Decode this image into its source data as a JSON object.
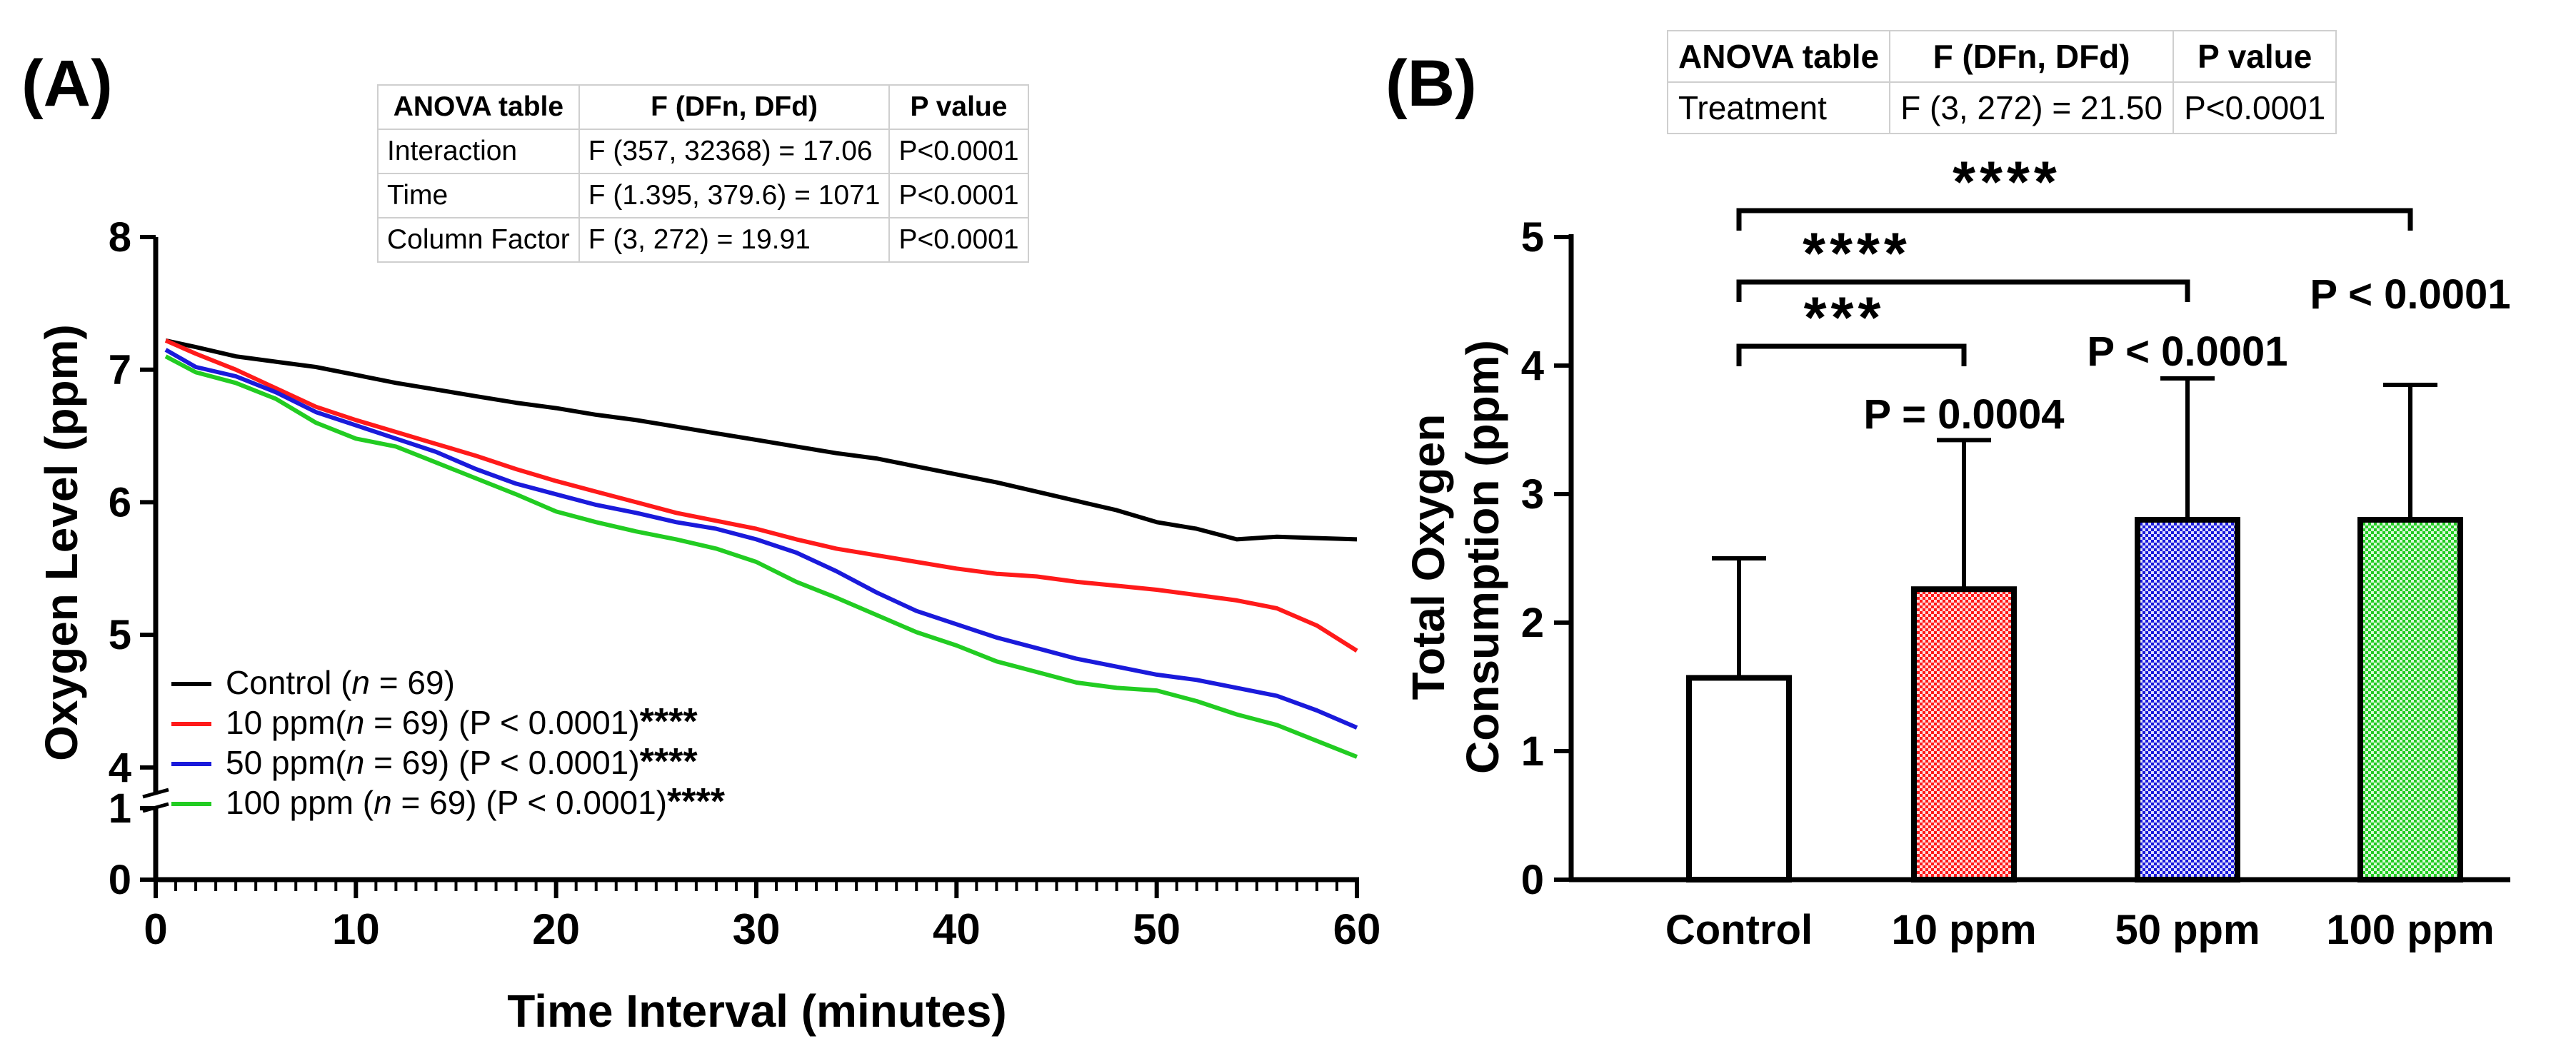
{
  "panels": {
    "a": {
      "label": "(A)"
    },
    "b": {
      "label": "(B)"
    }
  },
  "anova_a": {
    "headers": [
      "ANOVA table",
      "F (DFn, DFd)",
      "P value"
    ],
    "rows": [
      [
        "Interaction",
        "F (357, 32368) = 17.06",
        "P<0.0001"
      ],
      [
        "Time",
        "F (1.395, 379.6) = 1071",
        "P<0.0001"
      ],
      [
        "Column Factor",
        "F (3, 272) = 19.91",
        "P<0.0001"
      ]
    ]
  },
  "anova_b": {
    "headers": [
      "ANOVA table",
      "F (DFn, DFd)",
      "P value"
    ],
    "rows": [
      [
        "Treatment",
        "F (3, 272) = 21.50",
        "P<0.0001"
      ]
    ]
  },
  "colors": {
    "control": "#000000",
    "ppm10": "#ff1a1a",
    "ppm50": "#1a1adb",
    "ppm100": "#22cc22",
    "axis": "#000000"
  },
  "chart_data": [
    {
      "id": "line",
      "type": "line",
      "xlabel": "Time Interval (minutes)",
      "ylabel": "Oxygen Level (ppm)",
      "xlim": [
        0,
        60
      ],
      "xticks": [
        "0",
        "10",
        "20",
        "30",
        "40",
        "50",
        "60"
      ],
      "ylim_upper": [
        3.8,
        8
      ],
      "ylim_lower": [
        0,
        1
      ],
      "yticks_upper": [
        "4",
        "5",
        "6",
        "7",
        "8"
      ],
      "yticks_lower": [
        "0",
        "1"
      ],
      "legend_position": "bottom-left",
      "series": [
        {
          "key": "control",
          "name": "Control (n = 69)",
          "legend_pre": "Control (",
          "legend_n": "n",
          "legend_post": " = 69)",
          "legend_sig": "",
          "x": [
            0.5,
            2,
            4,
            6,
            8,
            10,
            12,
            14,
            16,
            18,
            20,
            22,
            24,
            26,
            28,
            30,
            32,
            34,
            36,
            38,
            40,
            42,
            44,
            46,
            48,
            50,
            52,
            54,
            56,
            58,
            60
          ],
          "y": [
            7.22,
            7.17,
            7.1,
            7.06,
            7.02,
            6.96,
            6.9,
            6.85,
            6.8,
            6.75,
            6.71,
            6.66,
            6.62,
            6.57,
            6.52,
            6.47,
            6.42,
            6.37,
            6.33,
            6.27,
            6.21,
            6.15,
            6.08,
            6.01,
            5.94,
            5.85,
            5.8,
            5.72,
            5.74,
            5.73,
            5.72
          ]
        },
        {
          "key": "ppm10",
          "name": "10 ppm(n = 69) (P < 0.0001)****",
          "legend_pre": "10 ppm(",
          "legend_n": "n",
          "legend_post": " = 69) (P < 0.0001)",
          "legend_sig": "****",
          "x": [
            0.5,
            2,
            4,
            6,
            8,
            10,
            12,
            14,
            16,
            18,
            20,
            22,
            24,
            26,
            28,
            30,
            32,
            34,
            36,
            38,
            40,
            42,
            44,
            46,
            48,
            50,
            52,
            54,
            56,
            58,
            60
          ],
          "y": [
            7.22,
            7.12,
            7.0,
            6.86,
            6.72,
            6.62,
            6.53,
            6.44,
            6.35,
            6.25,
            6.16,
            6.08,
            6.0,
            5.92,
            5.86,
            5.8,
            5.72,
            5.65,
            5.6,
            5.55,
            5.5,
            5.46,
            5.44,
            5.4,
            5.37,
            5.34,
            5.3,
            5.26,
            5.2,
            5.07,
            4.88
          ]
        },
        {
          "key": "ppm50",
          "name": "50 ppm(n = 69) (P < 0.0001)****",
          "legend_pre": "50 ppm(",
          "legend_n": "n",
          "legend_post": " = 69) (P < 0.0001)",
          "legend_sig": "****",
          "x": [
            0.5,
            2,
            4,
            6,
            8,
            10,
            12,
            14,
            16,
            18,
            20,
            22,
            24,
            26,
            28,
            30,
            32,
            34,
            36,
            38,
            40,
            42,
            44,
            46,
            48,
            50,
            52,
            54,
            56,
            58,
            60
          ],
          "y": [
            7.15,
            7.02,
            6.95,
            6.83,
            6.68,
            6.58,
            6.48,
            6.38,
            6.25,
            6.14,
            6.06,
            5.98,
            5.92,
            5.85,
            5.8,
            5.72,
            5.62,
            5.48,
            5.32,
            5.18,
            5.08,
            4.98,
            4.9,
            4.82,
            4.76,
            4.7,
            4.66,
            4.6,
            4.54,
            4.43,
            4.3
          ]
        },
        {
          "key": "ppm100",
          "name": "100 ppm (n = 69) (P < 0.0001)****",
          "legend_pre": "100 ppm (",
          "legend_n": "n",
          "legend_post": " = 69) (P < 0.0001)",
          "legend_sig": "****",
          "x": [
            0.5,
            2,
            4,
            6,
            8,
            10,
            12,
            14,
            16,
            18,
            20,
            22,
            24,
            26,
            28,
            30,
            32,
            34,
            36,
            38,
            40,
            42,
            44,
            46,
            48,
            50,
            52,
            54,
            56,
            58,
            60
          ],
          "y": [
            7.1,
            6.98,
            6.9,
            6.78,
            6.6,
            6.48,
            6.42,
            6.3,
            6.18,
            6.06,
            5.93,
            5.85,
            5.78,
            5.72,
            5.65,
            5.55,
            5.4,
            5.28,
            5.15,
            5.02,
            4.92,
            4.8,
            4.72,
            4.64,
            4.6,
            4.58,
            4.5,
            4.4,
            4.32,
            4.2,
            4.08
          ]
        }
      ]
    },
    {
      "id": "bar",
      "type": "bar",
      "ylabel_line1": "Total Oxygen",
      "ylabel_line2": "Consumption (ppm)",
      "ylim": [
        0,
        5
      ],
      "yticks": [
        "0",
        "1",
        "2",
        "3",
        "4",
        "5"
      ],
      "categories": [
        "Control",
        "10 ppm",
        "50 ppm",
        "100 ppm"
      ],
      "keys": [
        "control",
        "ppm10",
        "ppm50",
        "ppm100"
      ],
      "values": [
        1.57,
        2.26,
        2.8,
        2.8
      ],
      "error_upper": [
        2.5,
        3.42,
        3.9,
        3.85
      ],
      "pvalue_labels": [
        "",
        "P = 0.0004",
        "P < 0.0001",
        "P < 0.0001"
      ],
      "brackets": [
        {
          "from": 0,
          "to": 1,
          "label": "***"
        },
        {
          "from": 0,
          "to": 2,
          "label": "****"
        },
        {
          "from": 0,
          "to": 3,
          "label": "****"
        }
      ]
    }
  ]
}
